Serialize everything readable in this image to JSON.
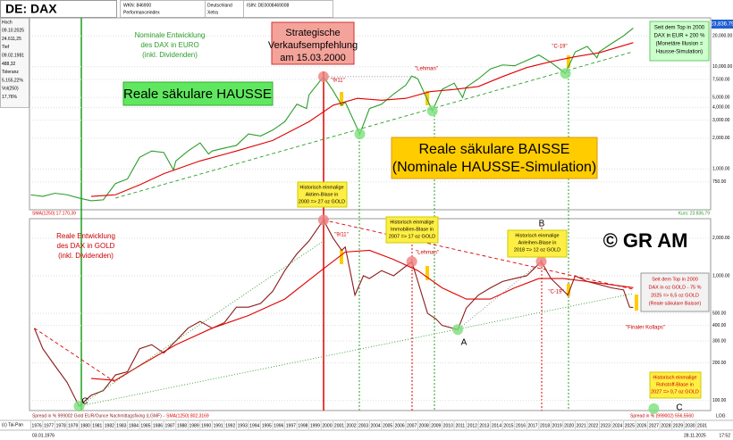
{
  "header": {
    "symbol": "DE: DAX",
    "wkn": "WKN: 846900",
    "kind": "Performanceindex",
    "country": "Deutschland",
    "exchange": "Xetra",
    "isin": "ISIN: DE0008469008"
  },
  "info": [
    "Hoch",
    "09.10.2025",
    "24.611,25",
    "Tief",
    "09.02.1981",
    "488,32",
    "Toleranz",
    "5.155,22%",
    "Vol(250)",
    "17,76%"
  ],
  "footer": [
    "(c) Tai-Pan",
    "03.01.1976",
    "28.11.2025",
    "17:52"
  ],
  "chart_data": [
    {
      "type": "line",
      "log_scale": true,
      "grid": true,
      "xlim": [
        1975.9,
        2032.2
      ],
      "ylim": [
        400,
        30000
      ],
      "yticks": [
        {
          "value": 20000,
          "label": "20,000.00"
        },
        {
          "value": 10000,
          "label": "10,000.00"
        },
        {
          "value": 7500,
          "label": "7,500.00"
        },
        {
          "value": 5000,
          "label": "5,000.00"
        },
        {
          "value": 4000,
          "label": "4,000.00"
        },
        {
          "value": 3000,
          "label": "3,000.00"
        },
        {
          "value": 2000,
          "label": "2,000.00"
        },
        {
          "value": 1000,
          "label": "1,000.00"
        },
        {
          "value": 750,
          "label": "750.00"
        }
      ],
      "series": [
        {
          "name": "Kurs: 23.836,79",
          "color": "#2a9d2a",
          "style": "solid",
          "x": [
            1976,
            1977,
            1978,
            1979,
            1980,
            1981,
            1982,
            1983,
            1984,
            1985,
            1986,
            1987,
            1987.8,
            1988,
            1989,
            1990,
            1990.7,
            1991,
            1992,
            1993,
            1994,
            1995,
            1996,
            1997,
            1998,
            1998.8,
            1999,
            2000.2,
            2001,
            2001.7,
            2002,
            2003.2,
            2004,
            2005,
            2006,
            2007,
            2007.5,
            2008,
            2009.2,
            2010,
            2011,
            2011.7,
            2012,
            2013,
            2014,
            2015,
            2016,
            2017,
            2018,
            2019,
            2020.2,
            2021,
            2022,
            2022.8,
            2023,
            2024,
            2025,
            2025.8
          ],
          "values": [
            560,
            540,
            580,
            560,
            520,
            490,
            500,
            720,
            800,
            1300,
            1500,
            1450,
            980,
            1200,
            1500,
            1800,
            1400,
            1500,
            1600,
            1700,
            2200,
            2100,
            2400,
            2900,
            4300,
            3900,
            5300,
            8000,
            5800,
            4200,
            4500,
            2200,
            3900,
            4300,
            5400,
            6600,
            8100,
            7600,
            3700,
            6000,
            6900,
            5000,
            6300,
            7600,
            9500,
            10400,
            10200,
            11500,
            13000,
            11000,
            8600,
            13900,
            15800,
            12200,
            14000,
            16800,
            20000,
            23836.79
          ]
        },
        {
          "name": "SMA(1250) 17.170,39",
          "color": "#e00000",
          "style": "solid",
          "x": [
            1981,
            1983,
            1985,
            1987,
            1990,
            1993,
            1996,
            1999,
            2001,
            2003,
            2005,
            2007,
            2009,
            2011,
            2013,
            2015,
            2017,
            2019,
            2021,
            2023,
            2025.8
          ],
          "values": [
            540,
            560,
            700,
            900,
            1200,
            1500,
            1900,
            2900,
            4200,
            4900,
            4700,
            4900,
            5700,
            6000,
            6400,
            8000,
            9800,
            11200,
            12500,
            13700,
            17170.39
          ]
        },
        {
          "color": "#2a9d2a",
          "style": "dashed",
          "x": [
            1983,
            2025.8
          ],
          "values": [
            520,
            14000
          ]
        },
        {
          "color": "#888888",
          "style": "dotted",
          "x": [
            2000.2,
            2008
          ],
          "values": [
            8000,
            8000
          ]
        },
        {
          "color": "#f08080",
          "style": "dots",
          "x": [
            2000.2
          ],
          "values": [
            8000
          ]
        },
        {
          "color": "#7be07b",
          "style": "dots",
          "x": [
            2003.2,
            2009.2,
            2020.2
          ],
          "values": [
            2200,
            3700,
            8600
          ]
        }
      ],
      "annotations": [
        [
          "Nominale Entwicklung",
          "des DAX in EURO",
          "(inkl. Dividenden)"
        ],
        [
          "Strategische",
          "Verkaufsempfehlung",
          "am 15.03.2000"
        ],
        [
          "Reale säkulare HAUSSE"
        ],
        [
          "Reale säkulare BAISSE",
          "(Nominale HAUSSE-Simulation)"
        ],
        [
          "\"9/11\""
        ],
        [
          "\"Lehman\""
        ],
        [
          "\"C-19\""
        ],
        [
          "Seit dem Top in 2000",
          "DAX in EUR + 200 %",
          "(Monetäre Illusion =",
          "Hausse-Simulation)"
        ],
        [
          "Historisch einmalige",
          "Aktien-Blase in",
          "2000 => 27 oz GOLD"
        ],
        [
          "23,836.79"
        ]
      ]
    },
    {
      "type": "line",
      "log_scale": true,
      "grid": true,
      "xlim": [
        1975.9,
        2032.2
      ],
      "ylim": [
        83,
        2870
      ],
      "yticks": [
        {
          "value": 2000,
          "label": "2,000.00"
        },
        {
          "value": 1000,
          "label": "1,000.00"
        },
        {
          "value": 500,
          "label": "500.00"
        },
        {
          "value": 400,
          "label": "400.00"
        },
        {
          "value": 300,
          "label": "300.00"
        },
        {
          "value": 200,
          "label": "200.00"
        },
        {
          "value": 100,
          "label": "100.00"
        }
      ],
      "xticks": [
        1976,
        1977,
        1978,
        1979,
        1980,
        1981,
        1982,
        1983,
        1984,
        1985,
        1986,
        1987,
        1988,
        1989,
        1990,
        1991,
        1992,
        1993,
        1994,
        1995,
        1996,
        1997,
        1998,
        1999,
        2000,
        2001,
        2002,
        2003,
        2004,
        2005,
        2006,
        2007,
        2008,
        2009,
        2010,
        2011,
        2012,
        2013,
        2014,
        2015,
        2016,
        2017,
        2018,
        2019,
        2020,
        2021,
        2022,
        2023,
        2024,
        2025,
        2026,
        2027,
        2028,
        2029,
        2030,
        2031
      ],
      "series": [
        {
          "name": "Spread in % 999002 Gold EUR/Ounce Nachmittagsfixing (LGMF) -",
          "color": "#8b1a1a",
          "style": "solid",
          "x": [
            1976.3,
            1977,
            1978,
            1979,
            1980,
            1981,
            1982,
            1983,
            1984,
            1985,
            1986,
            1987,
            1988,
            1989,
            1990,
            1991,
            1992,
            1993,
            1994,
            1995,
            1996,
            1997,
            1998,
            1999,
            2000.2,
            2001,
            2001.7,
            2002,
            2002.8,
            2003.5,
            2004,
            2005,
            2006,
            2007.5,
            2008,
            2008.8,
            2009.5,
            2010,
            2011.3,
            2012,
            2013,
            2014,
            2015,
            2016,
            2017,
            2018.2,
            2019,
            2020.4,
            2021,
            2022,
            2023,
            2024,
            2025,
            2025.5,
            2025.8
          ],
          "values": [
            380,
            260,
            190,
            140,
            90,
            110,
            120,
            160,
            170,
            260,
            280,
            240,
            300,
            380,
            430,
            380,
            420,
            560,
            560,
            600,
            750,
            1100,
            1500,
            1900,
            2800,
            2000,
            1600,
            1700,
            700,
            1000,
            950,
            1100,
            1000,
            1300,
            900,
            500,
            450,
            400,
            370,
            550,
            700,
            800,
            900,
            950,
            1000,
            1300,
            950,
            700,
            1000,
            900,
            850,
            800,
            770,
            560,
            556.556
          ]
        },
        {
          "name": "SMA(1250) 802,3169",
          "color": "#e00000",
          "style": "solid",
          "x": [
            1981,
            1983,
            1985,
            1988,
            1991,
            1994,
            1997,
            2000,
            2002,
            2004,
            2006,
            2008,
            2010,
            2012,
            2014,
            2016,
            2018,
            2020,
            2022,
            2025.8
          ],
          "values": [
            150,
            145,
            190,
            280,
            380,
            480,
            650,
            1100,
            1550,
            1600,
            1350,
            1100,
            800,
            650,
            650,
            800,
            950,
            950,
            900,
            802.3169
          ]
        },
        {
          "color": "#e00000",
          "style": "dashed",
          "x": [
            1976.3,
            1983
          ],
          "values": [
            380,
            140
          ]
        },
        {
          "color": "#e00000",
          "style": "dashed",
          "x": [
            2000.2,
            2025.8
          ],
          "values": [
            2800,
            780
          ]
        },
        {
          "color": "#2a9d2a",
          "style": "dotted",
          "x": [
            1980,
            2025.8
          ],
          "values": [
            90,
            720
          ]
        },
        {
          "color": "#2a9d2a",
          "style": "dotted",
          "x": [
            1980,
            2000.2
          ],
          "values": [
            90,
            1900
          ]
        },
        {
          "color": "#888888",
          "style": "dotted",
          "x": [
            2011.3,
            2018.2
          ],
          "values": [
            370,
            1300
          ]
        },
        {
          "color": "#f08080",
          "style": "dots",
          "x": [
            2000.2,
            2007.5,
            2018.2
          ],
          "values": [
            2800,
            1300,
            1300
          ]
        },
        {
          "color": "#7be07b",
          "style": "dots",
          "x": [
            1980,
            2011.3,
            2027.5
          ],
          "values": [
            90,
            370,
            86
          ]
        }
      ],
      "annotations": [
        [
          "Reale Entwicklung",
          "des DAX in GOLD",
          "(inkl. Dividenden)"
        ],
        [
          "Historisch einmalige",
          "Immobilien-Blase in",
          "2007 => 17 oz GOLD"
        ],
        [
          "Historisch einmalige",
          "Anleihen-Blase in",
          "2018 => 12 oz GOLD"
        ],
        [
          "© GR AM"
        ],
        [
          "B"
        ],
        [
          "A"
        ],
        [
          "C"
        ],
        [
          "C"
        ],
        [
          "\"9/11\""
        ],
        [
          "\"Lehman\""
        ],
        [
          "\"C-19\""
        ],
        [
          "Seit dem Top in 2000",
          "DAX in oz GOLD - 75 %",
          "2025 => 6,5 oz GOLD",
          "(Reale säkulare Baisse)"
        ],
        [
          "\"Finaler Kollaps\""
        ],
        [
          "Historisch einmalige",
          "Rohstoff-Blase in",
          "2027 => 0,7 oz GOLD"
        ],
        [
          "Spread in % (999002) 556,5560"
        ],
        [
          "LOG"
        ]
      ]
    }
  ]
}
